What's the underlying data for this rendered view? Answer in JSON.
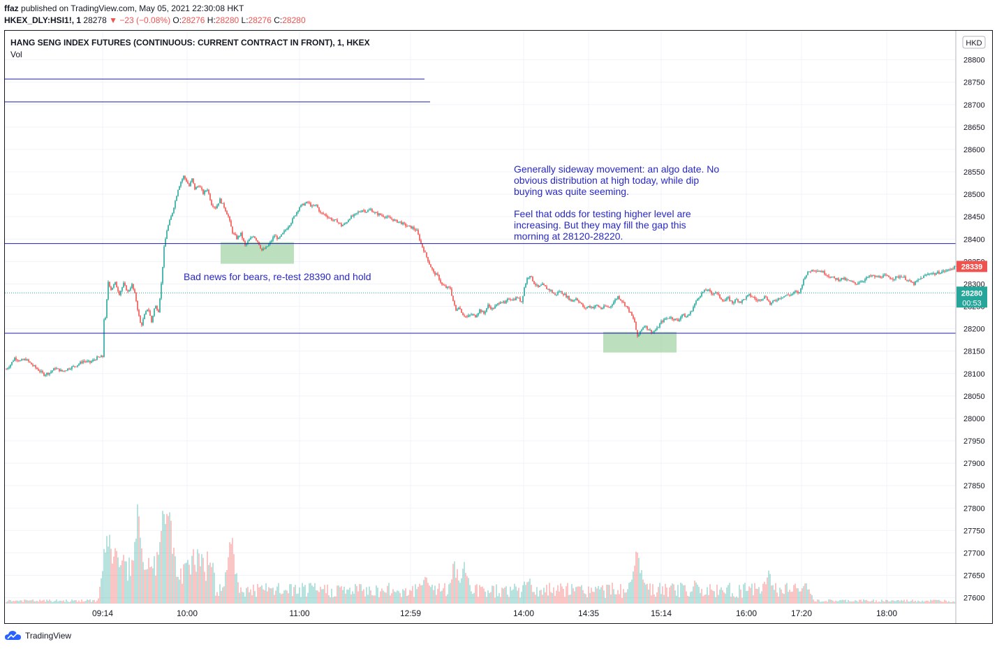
{
  "header": {
    "author": "ffaz",
    "published_text": "published on TradingView.com, May 05, 2021 22:30:08 HKT",
    "symbol_line": {
      "symbol": "HKEX_DLY:HSI1!, 1",
      "last": "28278",
      "arrow": "▼",
      "change": "−23 (−0.08%)",
      "o_label": "O:",
      "o": "28276",
      "h_label": "H:",
      "h": "28280",
      "l_label": "L:",
      "l": "28276",
      "c_label": "C:",
      "c": "28280"
    }
  },
  "chart_data": {
    "type": "candlestick",
    "title": "HANG SENG INDEX FUTURES (CONTINUOUS: CURRENT CONTRACT IN FRONT), 1, HKEX",
    "volume_label": "Vol",
    "currency": "HKD",
    "ylim": [
      27590,
      28790
    ],
    "y_ticks": [
      27600,
      27650,
      27700,
      27750,
      27800,
      27850,
      27900,
      27950,
      28000,
      28050,
      28100,
      28150,
      28200,
      28250,
      28300,
      28350,
      28400,
      28450,
      28500,
      28550,
      28600,
      28650,
      28700,
      28750,
      28800
    ],
    "x_ticks": [
      "09:14",
      "10:00",
      "11:00",
      "12:59",
      "14:00",
      "14:35",
      "15:14",
      "16:00",
      "17:20",
      "18:00"
    ],
    "grid": true,
    "price_path": [
      {
        "t": 0,
        "p": 28110
      },
      {
        "t": 6,
        "p": 28120
      },
      {
        "t": 12,
        "p": 28135
      },
      {
        "t": 20,
        "p": 28128
      },
      {
        "t": 28,
        "p": 28132
      },
      {
        "t": 38,
        "p": 28118
      },
      {
        "t": 46,
        "p": 28108
      },
      {
        "t": 54,
        "p": 28098
      },
      {
        "t": 62,
        "p": 28102
      },
      {
        "t": 70,
        "p": 28112
      },
      {
        "t": 80,
        "p": 28105
      },
      {
        "t": 90,
        "p": 28112
      },
      {
        "t": 100,
        "p": 28118
      },
      {
        "t": 110,
        "p": 28128
      },
      {
        "t": 120,
        "p": 28125
      },
      {
        "t": 130,
        "p": 28135
      },
      {
        "t": 138,
        "p": 28138
      },
      {
        "t": 142,
        "p": 28222
      },
      {
        "t": 146,
        "p": 28305
      },
      {
        "t": 150,
        "p": 28288
      },
      {
        "t": 156,
        "p": 28302
      },
      {
        "t": 162,
        "p": 28278
      },
      {
        "t": 168,
        "p": 28300
      },
      {
        "t": 174,
        "p": 28282
      },
      {
        "t": 180,
        "p": 28298
      },
      {
        "t": 185,
        "p": 28272
      },
      {
        "t": 189,
        "p": 28235
      },
      {
        "t": 193,
        "p": 28205
      },
      {
        "t": 198,
        "p": 28230
      },
      {
        "t": 203,
        "p": 28248
      },
      {
        "t": 208,
        "p": 28215
      },
      {
        "t": 213,
        "p": 28252
      },
      {
        "t": 218,
        "p": 28240
      },
      {
        "t": 222,
        "p": 28300
      },
      {
        "t": 226,
        "p": 28380
      },
      {
        "t": 230,
        "p": 28420
      },
      {
        "t": 234,
        "p": 28440
      },
      {
        "t": 238,
        "p": 28460
      },
      {
        "t": 242,
        "p": 28485
      },
      {
        "t": 246,
        "p": 28512
      },
      {
        "t": 250,
        "p": 28528
      },
      {
        "t": 254,
        "p": 28540
      },
      {
        "t": 258,
        "p": 28530
      },
      {
        "t": 262,
        "p": 28518
      },
      {
        "t": 266,
        "p": 28534
      },
      {
        "t": 270,
        "p": 28512
      },
      {
        "t": 276,
        "p": 28520
      },
      {
        "t": 282,
        "p": 28502
      },
      {
        "t": 288,
        "p": 28512
      },
      {
        "t": 294,
        "p": 28478
      },
      {
        "t": 300,
        "p": 28470
      },
      {
        "t": 306,
        "p": 28488
      },
      {
        "t": 312,
        "p": 28472
      },
      {
        "t": 318,
        "p": 28450
      },
      {
        "t": 324,
        "p": 28415
      },
      {
        "t": 330,
        "p": 28402
      },
      {
        "t": 336,
        "p": 28412
      },
      {
        "t": 342,
        "p": 28385
      },
      {
        "t": 348,
        "p": 28398
      },
      {
        "t": 354,
        "p": 28408
      },
      {
        "t": 360,
        "p": 28395
      },
      {
        "t": 366,
        "p": 28375
      },
      {
        "t": 372,
        "p": 28380
      },
      {
        "t": 378,
        "p": 28392
      },
      {
        "t": 384,
        "p": 28408
      },
      {
        "t": 390,
        "p": 28400
      },
      {
        "t": 396,
        "p": 28412
      },
      {
        "t": 402,
        "p": 28425
      },
      {
        "t": 408,
        "p": 28438
      },
      {
        "t": 414,
        "p": 28455
      },
      {
        "t": 420,
        "p": 28472
      },
      {
        "t": 426,
        "p": 28478
      },
      {
        "t": 432,
        "p": 28482
      },
      {
        "t": 438,
        "p": 28472
      },
      {
        "t": 444,
        "p": 28476
      },
      {
        "t": 450,
        "p": 28458
      },
      {
        "t": 456,
        "p": 28455
      },
      {
        "t": 462,
        "p": 28448
      },
      {
        "t": 468,
        "p": 28442
      },
      {
        "t": 474,
        "p": 28440
      },
      {
        "t": 480,
        "p": 28430
      },
      {
        "t": 486,
        "p": 28435
      },
      {
        "t": 492,
        "p": 28448
      },
      {
        "t": 498,
        "p": 28452
      },
      {
        "t": 504,
        "p": 28460
      },
      {
        "t": 510,
        "p": 28465
      },
      {
        "t": 516,
        "p": 28462
      },
      {
        "t": 522,
        "p": 28466
      },
      {
        "t": 528,
        "p": 28458
      },
      {
        "t": 534,
        "p": 28455
      },
      {
        "t": 540,
        "p": 28452
      },
      {
        "t": 546,
        "p": 28448
      },
      {
        "t": 552,
        "p": 28445
      },
      {
        "t": 558,
        "p": 28440
      },
      {
        "t": 564,
        "p": 28438
      },
      {
        "t": 570,
        "p": 28432
      },
      {
        "t": 576,
        "p": 28428
      },
      {
        "t": 582,
        "p": 28425
      },
      {
        "t": 588,
        "p": 28418
      },
      {
        "t": 594,
        "p": 28390
      },
      {
        "t": 600,
        "p": 28368
      },
      {
        "t": 606,
        "p": 28345
      },
      {
        "t": 612,
        "p": 28325
      },
      {
        "t": 618,
        "p": 28318
      },
      {
        "t": 624,
        "p": 28298
      },
      {
        "t": 630,
        "p": 28292
      },
      {
        "t": 636,
        "p": 28290
      },
      {
        "t": 640,
        "p": 28262
      },
      {
        "t": 644,
        "p": 28240
      },
      {
        "t": 648,
        "p": 28250
      },
      {
        "t": 654,
        "p": 28232
      },
      {
        "t": 660,
        "p": 28226
      },
      {
        "t": 666,
        "p": 28232
      },
      {
        "t": 672,
        "p": 28228
      },
      {
        "t": 678,
        "p": 28242
      },
      {
        "t": 684,
        "p": 28234
      },
      {
        "t": 690,
        "p": 28252
      },
      {
        "t": 696,
        "p": 28244
      },
      {
        "t": 702,
        "p": 28252
      },
      {
        "t": 708,
        "p": 28262
      },
      {
        "t": 714,
        "p": 28256
      },
      {
        "t": 720,
        "p": 28268
      },
      {
        "t": 726,
        "p": 28265
      },
      {
        "t": 732,
        "p": 28270
      },
      {
        "t": 738,
        "p": 28260
      },
      {
        "t": 742,
        "p": 28292
      },
      {
        "t": 746,
        "p": 28312
      },
      {
        "t": 750,
        "p": 28320
      },
      {
        "t": 756,
        "p": 28302
      },
      {
        "t": 762,
        "p": 28292
      },
      {
        "t": 768,
        "p": 28298
      },
      {
        "t": 774,
        "p": 28290
      },
      {
        "t": 780,
        "p": 28285
      },
      {
        "t": 786,
        "p": 28275
      },
      {
        "t": 792,
        "p": 28284
      },
      {
        "t": 798,
        "p": 28278
      },
      {
        "t": 804,
        "p": 28270
      },
      {
        "t": 810,
        "p": 28262
      },
      {
        "t": 816,
        "p": 28268
      },
      {
        "t": 822,
        "p": 28258
      },
      {
        "t": 828,
        "p": 28245
      },
      {
        "t": 834,
        "p": 28250
      },
      {
        "t": 840,
        "p": 28248
      },
      {
        "t": 846,
        "p": 28252
      },
      {
        "t": 852,
        "p": 28245
      },
      {
        "t": 858,
        "p": 28250
      },
      {
        "t": 864,
        "p": 28248
      },
      {
        "t": 870,
        "p": 28260
      },
      {
        "t": 876,
        "p": 28272
      },
      {
        "t": 882,
        "p": 28262
      },
      {
        "t": 888,
        "p": 28250
      },
      {
        "t": 894,
        "p": 28235
      },
      {
        "t": 900,
        "p": 28215
      },
      {
        "t": 904,
        "p": 28180
      },
      {
        "t": 908,
        "p": 28195
      },
      {
        "t": 914,
        "p": 28208
      },
      {
        "t": 920,
        "p": 28198
      },
      {
        "t": 926,
        "p": 28192
      },
      {
        "t": 932,
        "p": 28200
      },
      {
        "t": 938,
        "p": 28215
      },
      {
        "t": 944,
        "p": 28222
      },
      {
        "t": 950,
        "p": 28226
      },
      {
        "t": 956,
        "p": 28222
      },
      {
        "t": 962,
        "p": 28218
      },
      {
        "t": 968,
        "p": 28232
      },
      {
        "t": 974,
        "p": 28226
      },
      {
        "t": 980,
        "p": 28236
      },
      {
        "t": 986,
        "p": 28255
      },
      {
        "t": 992,
        "p": 28272
      },
      {
        "t": 998,
        "p": 28282
      },
      {
        "t": 1004,
        "p": 28288
      },
      {
        "t": 1010,
        "p": 28278
      },
      {
        "t": 1016,
        "p": 28282
      },
      {
        "t": 1022,
        "p": 28270
      },
      {
        "t": 1028,
        "p": 28262
      },
      {
        "t": 1034,
        "p": 28268
      },
      {
        "t": 1040,
        "p": 28258
      },
      {
        "t": 1046,
        "p": 28265
      },
      {
        "t": 1052,
        "p": 28260
      },
      {
        "t": 1058,
        "p": 28268
      },
      {
        "t": 1064,
        "p": 28275
      },
      {
        "t": 1070,
        "p": 28270
      },
      {
        "t": 1076,
        "p": 28262
      },
      {
        "t": 1082,
        "p": 28268
      },
      {
        "t": 1088,
        "p": 28272
      },
      {
        "t": 1094,
        "p": 28255
      },
      {
        "t": 1100,
        "p": 28262
      },
      {
        "t": 1106,
        "p": 28268
      },
      {
        "t": 1112,
        "p": 28272
      },
      {
        "t": 1118,
        "p": 28275
      },
      {
        "t": 1124,
        "p": 28276
      },
      {
        "t": 1130,
        "p": 28282
      },
      {
        "t": 1136,
        "p": 28280
      },
      {
        "t": 1140,
        "p": 28300
      },
      {
        "t": 1144,
        "p": 28318
      },
      {
        "t": 1150,
        "p": 28328
      },
      {
        "t": 1156,
        "p": 28332
      },
      {
        "t": 1162,
        "p": 28330
      },
      {
        "t": 1168,
        "p": 28328
      },
      {
        "t": 1174,
        "p": 28322
      },
      {
        "t": 1180,
        "p": 28316
      },
      {
        "t": 1186,
        "p": 28312
      },
      {
        "t": 1192,
        "p": 28310
      },
      {
        "t": 1198,
        "p": 28312
      },
      {
        "t": 1204,
        "p": 28308
      },
      {
        "t": 1210,
        "p": 28305
      },
      {
        "t": 1216,
        "p": 28300
      },
      {
        "t": 1222,
        "p": 28305
      },
      {
        "t": 1228,
        "p": 28308
      },
      {
        "t": 1234,
        "p": 28315
      },
      {
        "t": 1240,
        "p": 28318
      },
      {
        "t": 1246,
        "p": 28315
      },
      {
        "t": 1252,
        "p": 28316
      },
      {
        "t": 1258,
        "p": 28318
      },
      {
        "t": 1264,
        "p": 28315
      },
      {
        "t": 1270,
        "p": 28312
      },
      {
        "t": 1276,
        "p": 28315
      },
      {
        "t": 1282,
        "p": 28318
      },
      {
        "t": 1288,
        "p": 28312
      },
      {
        "t": 1294,
        "p": 28305
      },
      {
        "t": 1300,
        "p": 28300
      },
      {
        "t": 1306,
        "p": 28308
      },
      {
        "t": 1312,
        "p": 28315
      },
      {
        "t": 1318,
        "p": 28320
      },
      {
        "t": 1324,
        "p": 28325
      },
      {
        "t": 1330,
        "p": 28322
      },
      {
        "t": 1336,
        "p": 28326
      },
      {
        "t": 1342,
        "p": 28328
      },
      {
        "t": 1348,
        "p": 28330
      },
      {
        "t": 1354,
        "p": 28335
      },
      {
        "t": 1361,
        "p": 28339
      }
    ],
    "volume_peaks": [
      {
        "t": 145,
        "v": 130
      },
      {
        "t": 150,
        "v": 110
      },
      {
        "t": 188,
        "v": 150
      },
      {
        "t": 223,
        "v": 180
      },
      {
        "t": 231,
        "v": 200
      },
      {
        "t": 322,
        "v": 120
      },
      {
        "t": 600,
        "v": 60
      },
      {
        "t": 642,
        "v": 70
      },
      {
        "t": 657,
        "v": 65
      },
      {
        "t": 747,
        "v": 50
      },
      {
        "t": 903,
        "v": 110
      },
      {
        "t": 988,
        "v": 40
      },
      {
        "t": 1091,
        "v": 55
      },
      {
        "t": 1145,
        "v": 35
      }
    ],
    "horizontal_lines": [
      {
        "price": 28390,
        "label": ""
      },
      {
        "price": 28190,
        "label": ""
      },
      {
        "price": 28757,
        "label": ""
      },
      {
        "price": 28706,
        "label": ""
      }
    ],
    "highlight_boxes": [
      {
        "from_t": 307,
        "to_t": 412,
        "price_low": 28345,
        "price_high": 28393
      },
      {
        "from_t": 855,
        "to_t": 960,
        "price_low": 28147,
        "price_high": 28193
      }
    ],
    "annotations": [
      {
        "lines": [
          "Bad news for bears, re-test 28390 and hold"
        ]
      },
      {
        "lines": [
          "Generally sideway movement: an algo date. No",
          "obvious distribution at high today, while dip",
          "buying was quite seeming.",
          "",
          "Feel that odds for testing higher level are",
          "increasing. But they may fill the gap this",
          "morning at 28120-28220."
        ]
      }
    ],
    "price_labels": [
      {
        "text": "28339",
        "color": "#ef5350"
      },
      {
        "text": "28280",
        "sub": "00:53",
        "color": "#26a69a"
      }
    ],
    "colors": {
      "up": "#26a69a",
      "down": "#ef5350",
      "hline": "#1e1ea8",
      "highlight": "#a5d6a7",
      "annotation": "#2828c8",
      "grid": "#f0f3fa"
    }
  },
  "footer": {
    "brand": "TradingView"
  }
}
